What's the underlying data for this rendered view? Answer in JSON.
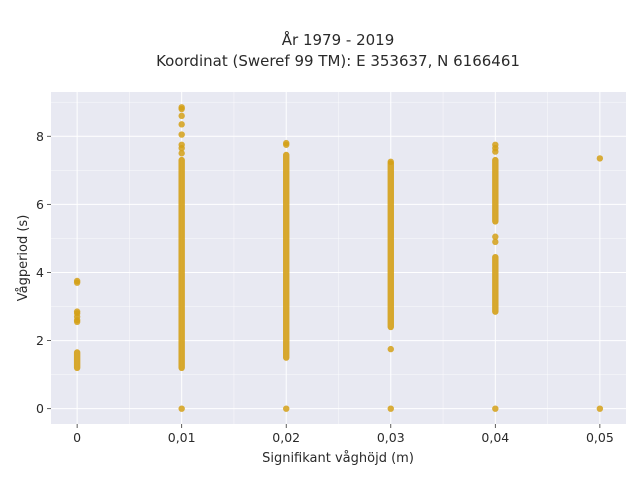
{
  "chart_data": {
    "type": "scatter",
    "title": "År 1979 - 2019",
    "subtitle": "Koordinat (Sweref 99 TM): E 353637, N 6166461",
    "xlabel": "Signifikant våghöjd (m)",
    "ylabel": "Vågperiod (s)",
    "xlim": [
      -0.0025,
      0.0525
    ],
    "ylim": [
      -0.45,
      9.3
    ],
    "xticks": [
      0,
      0.01,
      0.02,
      0.03,
      0.04,
      0.05
    ],
    "xtick_labels": [
      "0",
      "0,01",
      "0,02",
      "0,03",
      "0,04",
      "0,05"
    ],
    "yticks": [
      0,
      2,
      4,
      6,
      8
    ],
    "ytick_labels": [
      "0",
      "2",
      "4",
      "6",
      "8"
    ],
    "grid": true,
    "background": "#e8e9f2",
    "marker_color": "#d4a017",
    "series": [
      {
        "bands": [
          {
            "x": 0,
            "from": 1.2,
            "to": 1.65
          },
          {
            "x": 0.01,
            "from": 1.2,
            "to": 7.3
          },
          {
            "x": 0.02,
            "from": 1.5,
            "to": 7.45
          },
          {
            "x": 0.03,
            "from": 2.4,
            "to": 7.2
          },
          {
            "x": 0.04,
            "from": 2.85,
            "to": 4.45
          },
          {
            "x": 0.04,
            "from": 5.5,
            "to": 7.3
          }
        ],
        "points": [
          {
            "x": 0,
            "y": 3.7
          },
          {
            "x": 0,
            "y": 3.75
          },
          {
            "x": 0,
            "y": 2.85
          },
          {
            "x": 0,
            "y": 2.8
          },
          {
            "x": 0,
            "y": 2.7
          },
          {
            "x": 0,
            "y": 2.6
          },
          {
            "x": 0,
            "y": 2.55
          },
          {
            "x": 0.01,
            "y": 8.85
          },
          {
            "x": 0.01,
            "y": 8.8
          },
          {
            "x": 0.01,
            "y": 8.6
          },
          {
            "x": 0.01,
            "y": 8.35
          },
          {
            "x": 0.01,
            "y": 8.05
          },
          {
            "x": 0.01,
            "y": 7.75
          },
          {
            "x": 0.01,
            "y": 7.65
          },
          {
            "x": 0.01,
            "y": 7.5
          },
          {
            "x": 0.01,
            "y": 0.0
          },
          {
            "x": 0.02,
            "y": 7.8
          },
          {
            "x": 0.02,
            "y": 7.75
          },
          {
            "x": 0.02,
            "y": 0.0
          },
          {
            "x": 0.03,
            "y": 1.75
          },
          {
            "x": 0.03,
            "y": 7.25
          },
          {
            "x": 0.03,
            "y": 0.0
          },
          {
            "x": 0.04,
            "y": 7.75
          },
          {
            "x": 0.04,
            "y": 7.65
          },
          {
            "x": 0.04,
            "y": 7.55
          },
          {
            "x": 0.04,
            "y": 5.05
          },
          {
            "x": 0.04,
            "y": 4.9
          },
          {
            "x": 0.04,
            "y": 0.0
          },
          {
            "x": 0.05,
            "y": 7.35
          },
          {
            "x": 0.05,
            "y": 0.0
          }
        ]
      }
    ]
  }
}
